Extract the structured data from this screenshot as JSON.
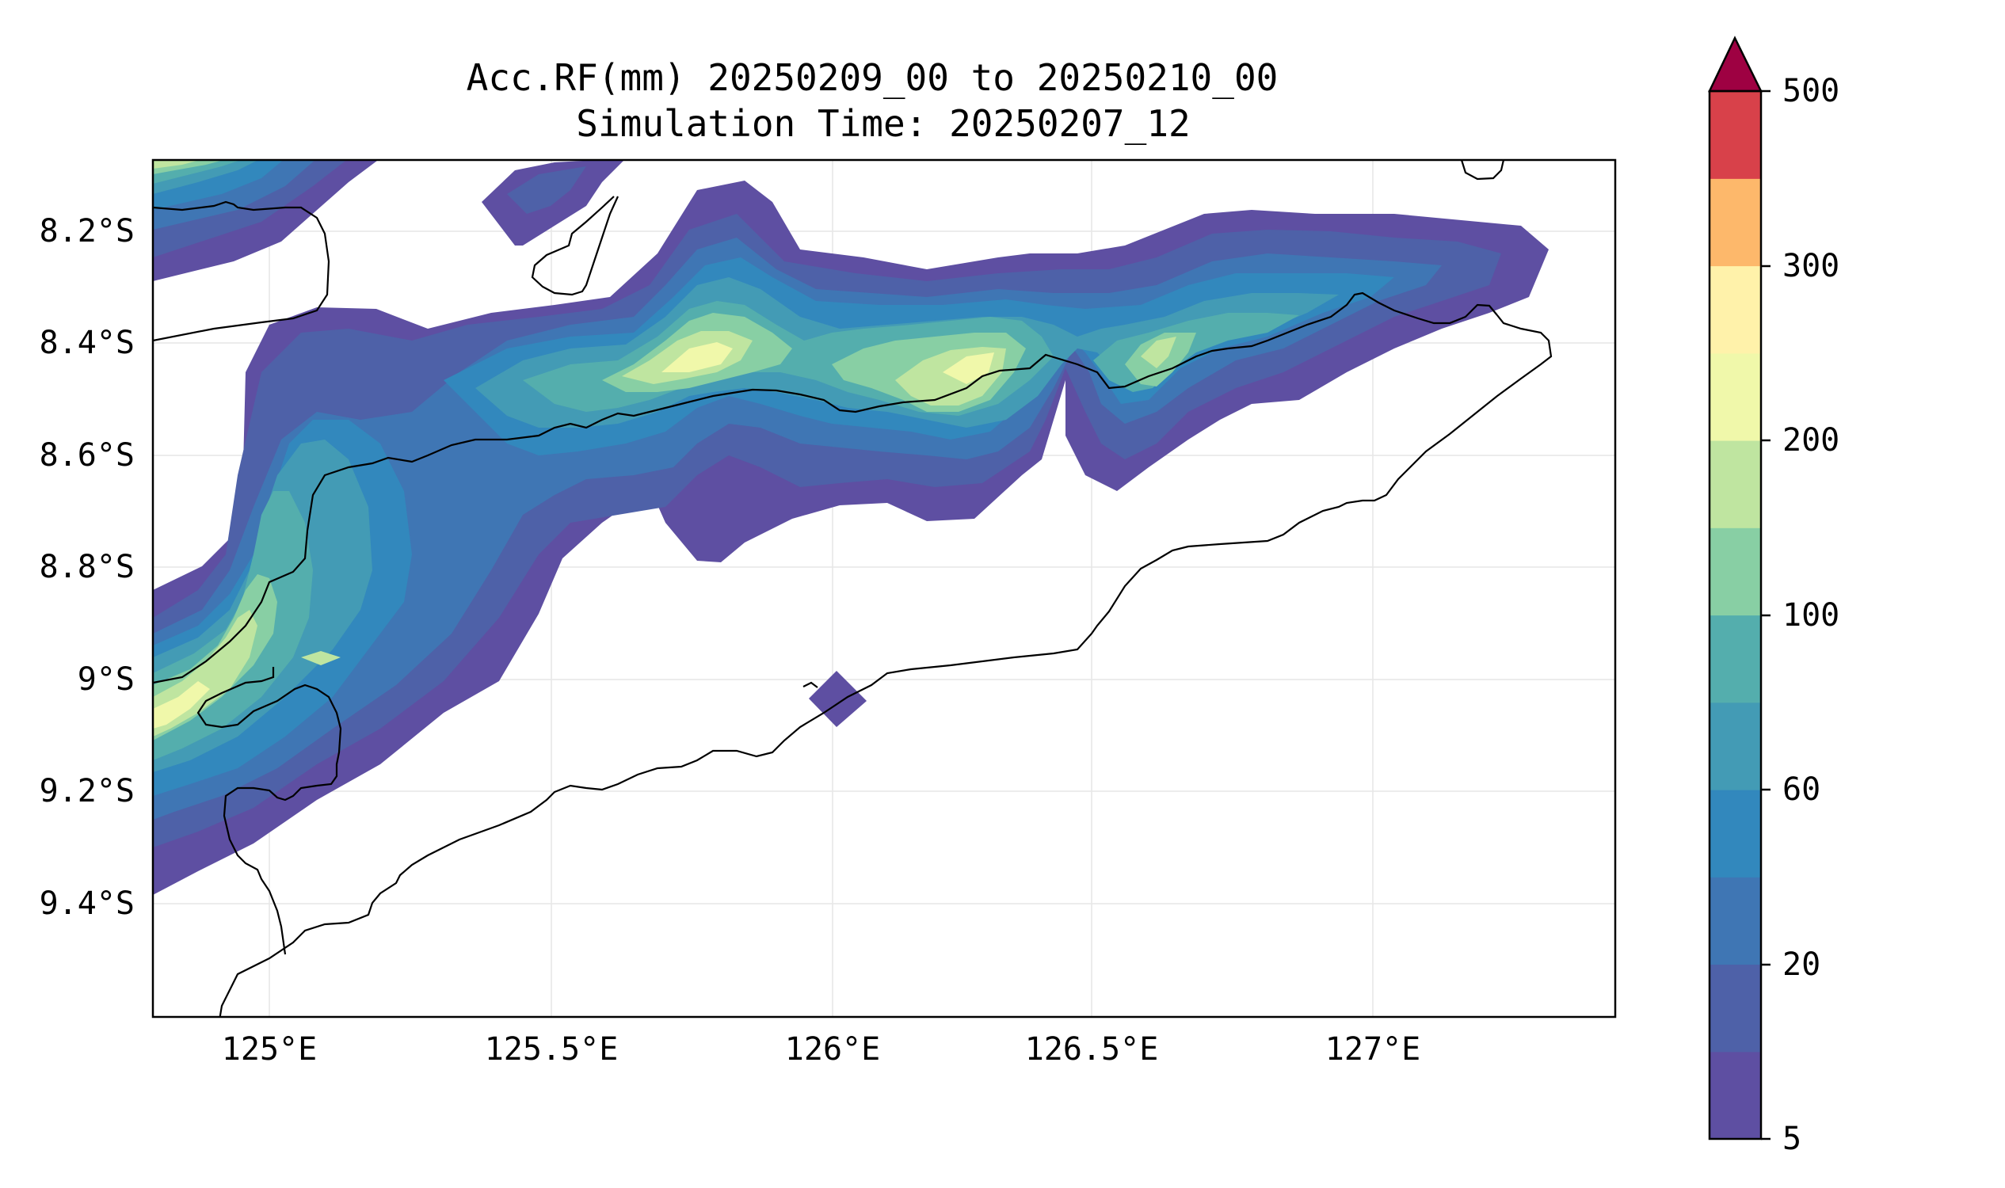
{
  "title": {
    "line1": "Acc.RF(mm) 20250209_00 to 20250210_00",
    "line2": "Simulation Time: 20250207_12"
  },
  "map": {
    "x_ticks": [
      "125°E",
      "125.5°E",
      "126°E",
      "126.5°E",
      "127°E"
    ],
    "y_ticks": [
      "8.2°S",
      "8.4°S",
      "8.6°S",
      "8.8°S",
      "9°S",
      "9.2°S",
      "9.4°S"
    ],
    "x_tick_values": [
      125.0,
      125.5,
      126.0,
      126.5,
      127.0
    ],
    "y_tick_values": [
      -8.2,
      -8.4,
      -8.6,
      -8.8,
      -9.0,
      -9.2,
      -9.4
    ],
    "lon_range": [
      124.83,
      127.42
    ],
    "lat_range": [
      -9.6,
      -8.07
    ]
  },
  "colorbar": {
    "tick_labels": [
      "5",
      "20",
      "60",
      "100",
      "200",
      "300",
      "500"
    ],
    "levels": [
      "5",
      "10",
      "20",
      "40",
      "60",
      "80",
      "100",
      "150",
      "200",
      "250",
      "300",
      "400",
      "500"
    ],
    "colors": [
      "#5e4fa2",
      "#4e61a8",
      "#3f76b4",
      "#3288bd",
      "#439bb5",
      "#54aead",
      "#88cfa4",
      "#bfe5a0",
      "#f0f8aa",
      "#fff2aa",
      "#fdb86b",
      "#d8414a"
    ],
    "extend_color": "#9e0142"
  },
  "colors": {
    "level_5": "#5e4fa2",
    "level_10": "#4e61a8",
    "level_20": "#3f76b4",
    "level_40": "#3288bd",
    "level_60": "#439bb5",
    "level_80": "#54aead",
    "level_100": "#88cfa4",
    "level_150": "#bfe5a0",
    "level_200": "#f0f8aa"
  }
}
